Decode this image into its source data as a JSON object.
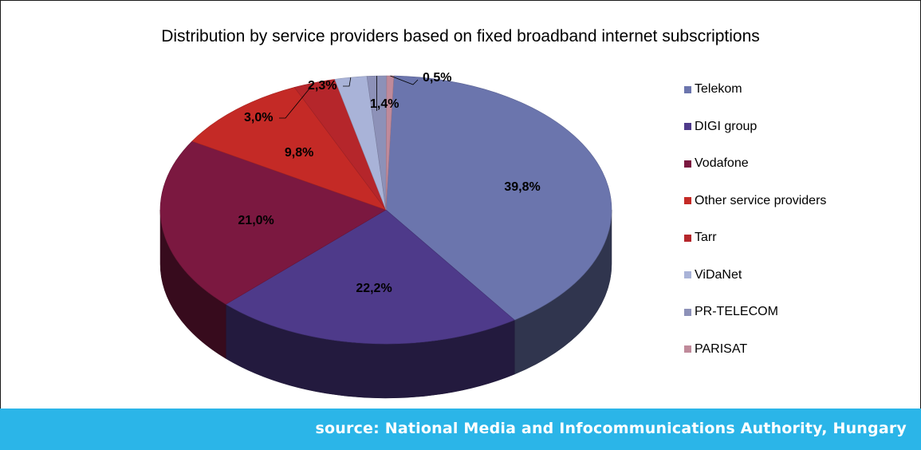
{
  "chart_data": {
    "type": "pie",
    "title": "Distribution by service providers based on fixed broadband internet subscriptions",
    "slices": [
      {
        "name": "Telekom",
        "value": 39.8,
        "label": "39,8%",
        "color": "#6b75ad"
      },
      {
        "name": "DIGI group",
        "value": 22.2,
        "label": "22,2%",
        "color": "#4e3a8a"
      },
      {
        "name": "Vodafone",
        "value": 21.0,
        "label": "21,0%",
        "color": "#7b1840"
      },
      {
        "name": "Other service providers",
        "value": 9.8,
        "label": "9,8%",
        "color": "#c42a26"
      },
      {
        "name": "Tarr",
        "value": 3.0,
        "label": "3,0%",
        "color": "#b5262b"
      },
      {
        "name": "ViDaNet",
        "value": 2.3,
        "label": "2,3%",
        "color": "#a9b3d8"
      },
      {
        "name": "PR-TELECOM",
        "value": 1.4,
        "label": "1,4%",
        "color": "#8d91b8"
      },
      {
        "name": "PARISAT",
        "value": 0.5,
        "label": "0,5%",
        "color": "#c08a9a"
      }
    ],
    "legend_position": "right",
    "style": "3d"
  },
  "footer": {
    "source": "source: National Media and Infocommunications Authority, Hungary"
  }
}
